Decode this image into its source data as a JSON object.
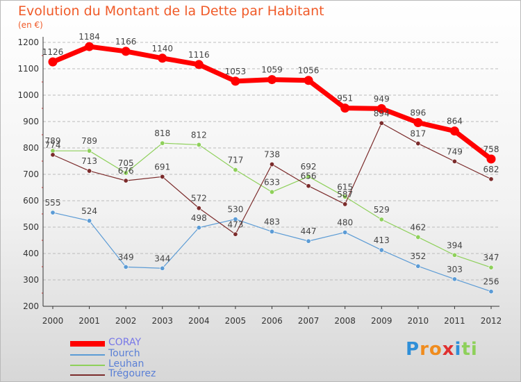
{
  "title": "Evolution du Montant de la Dette par Habitant",
  "unit": "(en €)",
  "logo": "Proxiti",
  "colors": {
    "coray": "#ff0000",
    "tourch": "#5b9bd5",
    "leuhan": "#8ed05a",
    "tregourez": "#7b2b2b",
    "axis": "#333333",
    "grid": "#bbbbbb"
  },
  "chart_data": {
    "type": "line",
    "x": [
      "2000",
      "2001",
      "2002",
      "2003",
      "2004",
      "2005",
      "2006",
      "2007",
      "2008",
      "2009",
      "2010",
      "2011",
      "2012"
    ],
    "ylim": [
      200,
      1200
    ],
    "yticks": [
      "200",
      "300",
      "400",
      "500",
      "600",
      "700",
      "800",
      "900",
      "1000",
      "1100",
      "1200"
    ],
    "grid": "horizontal dashed",
    "legend": "bottom-left",
    "series": [
      {
        "name": "CORAY",
        "values": [
          1126,
          1184,
          1166,
          1140,
          1116,
          1053,
          1059,
          1056,
          951,
          949,
          896,
          864,
          758
        ]
      },
      {
        "name": "Tourch",
        "values": [
          555,
          524,
          349,
          344,
          498,
          530,
          483,
          447,
          480,
          413,
          352,
          303,
          256
        ]
      },
      {
        "name": "Leuhan",
        "values": [
          789,
          789,
          705,
          818,
          812,
          717,
          633,
          692,
          615,
          529,
          462,
          394,
          347
        ]
      },
      {
        "name": "Trégourez",
        "values": [
          774,
          713,
          676,
          691,
          572,
          473,
          738,
          656,
          587,
          894,
          817,
          749,
          682
        ]
      }
    ]
  }
}
